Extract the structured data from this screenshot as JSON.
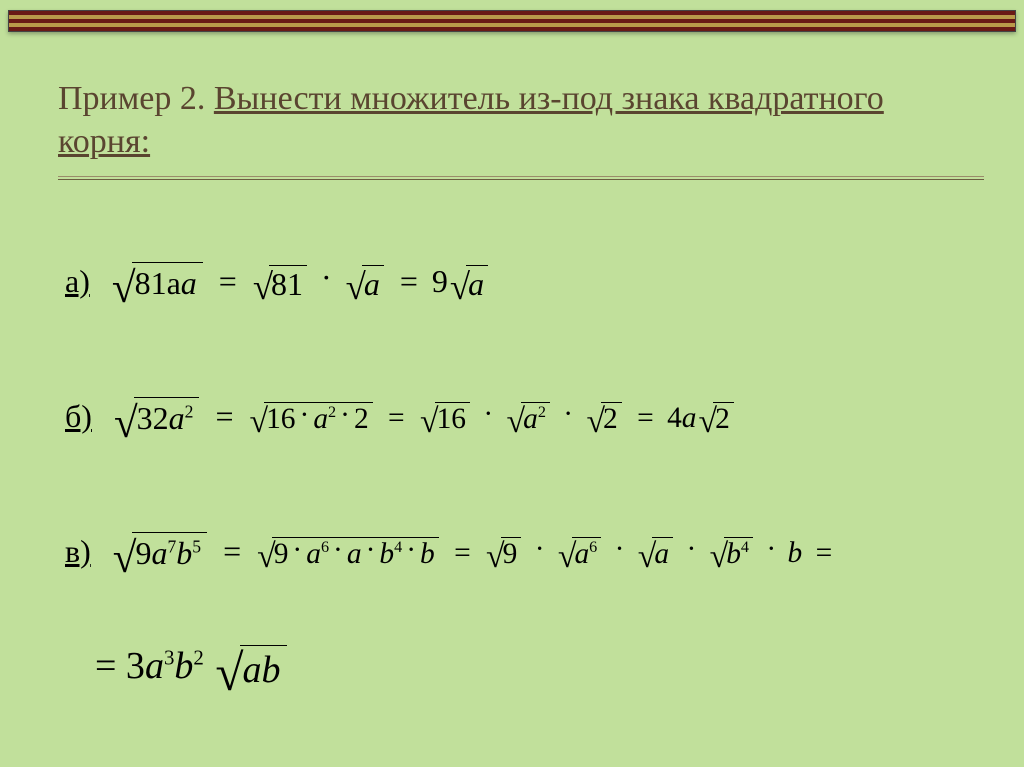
{
  "slide": {
    "background_color": "#c1e09b",
    "border_colors": [
      "#6a1a16",
      "#b99a4a"
    ],
    "heading_color": "#5a4530",
    "text_color": "#000000"
  },
  "heading": {
    "prefix": "Пример 2. ",
    "underlined": "Вынести множитель из-под знака квадратного корня:"
  },
  "rows": {
    "a": {
      "label": "а)",
      "lhs_radicand": "81a",
      "eq": "=",
      "step1_r1": "81",
      "step1_r2": "a",
      "result_coef": "9",
      "result_radicand": "a"
    },
    "b": {
      "label": "б)",
      "lhs_radicand": "32a",
      "lhs_exp": "2",
      "eq": "=",
      "s1_r": "16",
      "s1_a": "a",
      "s1_ae": "2",
      "s1_n": "2",
      "s2_r1": "16",
      "s2_r2": "a",
      "s2_r2e": "2",
      "s2_r3": "2",
      "res_coef": "4a",
      "res_rad": "2"
    },
    "c": {
      "label": "в)",
      "lhs_c": "9a",
      "lhs_e1": "7",
      "lhs_b": "b",
      "lhs_e2": "5",
      "eq": "=",
      "s1_9": "9",
      "s1_a": "a",
      "s1_a6": "6",
      "s1_a1": "a",
      "s1_b": "b",
      "s1_b4": "4",
      "s1_b1": "b",
      "s2_9": "9",
      "s2_a": "a",
      "s2_a6": "6",
      "s2_a1": "a",
      "s2_b": "b",
      "s2_b4": "4",
      "s2_b1": "b",
      "final_pre": "= 3a",
      "final_e1": "3",
      "final_b": "b",
      "final_e2": "2",
      "final_rad": "ab"
    }
  }
}
